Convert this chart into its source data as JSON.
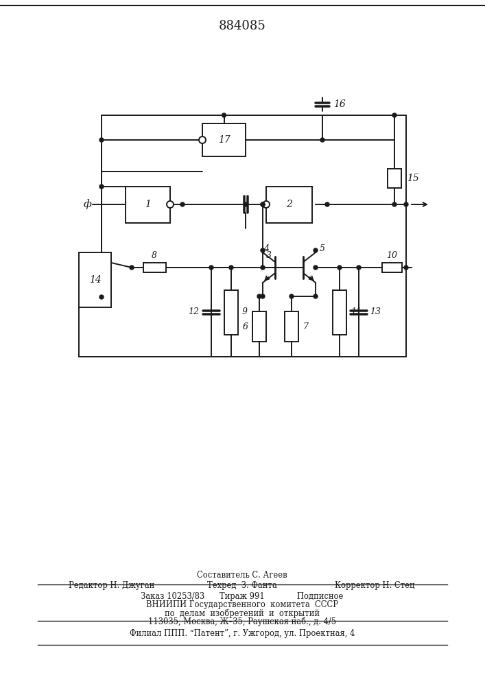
{
  "title": "884085",
  "bg_color": "#ffffff",
  "line_color": "#1a1a1a",
  "lw": 1.4,
  "footer": {
    "line1": "Составитель С. Агеев",
    "line2_left": "Редактор Н. Джуган",
    "line2_mid": "Техред  З. Фанта",
    "line2_right": "Корректор Н. Стец",
    "line3": "Заказ 10253/83      Тираж 991             Подписное",
    "line4": "ВНИИПИ Государственного  комитета  СССР",
    "line5": "по  делам  изобретений  и  открытий",
    "line6": "113035, Москва, Ж–35, Раушская наб., д. 4/5",
    "line7": "Филиал ППП. “Патент”, г. Ужгород, ул. Проектная, 4"
  }
}
